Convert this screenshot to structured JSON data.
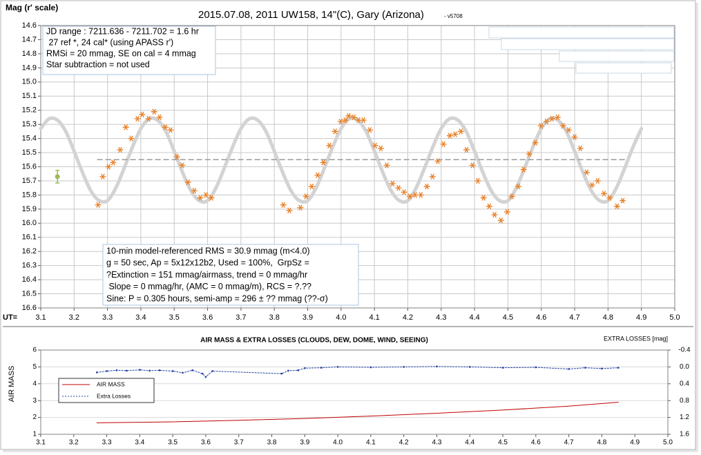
{
  "chart_data": [
    {
      "type": "scatter",
      "title": "2015.07.08, 2011 UW158, 14\"(C), Gary (Arizona)",
      "subtitle": "- v5708",
      "ylabel": "Mag (r' scale)",
      "xlabel": "UT=",
      "xlim": [
        3.1,
        5.0
      ],
      "xticks": [
        3.1,
        3.2,
        3.3,
        3.4,
        3.5,
        3.6,
        3.7,
        3.8,
        3.9,
        {
          "value": 4,
          "label": "4.0"
        },
        4.1,
        4.2,
        4.3,
        4.4,
        4.5,
        4.6,
        4.7,
        4.8,
        4.9,
        {
          "value": 5,
          "label": "5.0"
        }
      ],
      "ylim": [
        14.6,
        16.6
      ],
      "y_inverted": true,
      "yticks": [
        14.6,
        14.7,
        14.8,
        14.9,
        {
          "value": 15,
          "label": "15.0"
        },
        15.1,
        15.2,
        15.3,
        15.4,
        15.5,
        15.6,
        15.7,
        15.8,
        15.9,
        {
          "value": 16,
          "label": "16.0"
        },
        16.1,
        16.2,
        16.3,
        16.4,
        16.5,
        16.6
      ],
      "grid": true,
      "series": [
        {
          "color": "#d3d3d3",
          "x": [
            3.1,
            3.125,
            3.15,
            3.175,
            3.2,
            3.225,
            3.25,
            3.275,
            3.3,
            3.325,
            3.35,
            3.375,
            3.4,
            3.425,
            3.45,
            3.475,
            3.5,
            3.525,
            3.55,
            3.575,
            3.6,
            3.625,
            3.65,
            3.675,
            3.7,
            3.725,
            3.75,
            3.775,
            3.8,
            3.825,
            3.85,
            3.875,
            3.9,
            3.925,
            3.95,
            3.975,
            4.0,
            4.025,
            4.05,
            4.075,
            4.1,
            4.125,
            4.15,
            4.175,
            4.2,
            4.225,
            4.25,
            4.275,
            4.3,
            4.325,
            4.35,
            4.375,
            4.4,
            4.425,
            4.45,
            4.475,
            4.5,
            4.525,
            4.55,
            4.575,
            4.6,
            4.625,
            4.65,
            4.675,
            4.7,
            4.725,
            4.75,
            4.775,
            4.8,
            4.825,
            4.85,
            4.875,
            4.9
          ],
          "values": [
            15.33,
            15.26,
            15.27,
            15.35,
            15.49,
            15.64,
            15.77,
            15.84,
            15.84,
            15.75,
            15.61,
            15.46,
            15.33,
            15.26,
            15.27,
            15.35,
            15.49,
            15.64,
            15.77,
            15.84,
            15.84,
            15.75,
            15.61,
            15.46,
            15.33,
            15.26,
            15.27,
            15.35,
            15.49,
            15.64,
            15.77,
            15.84,
            15.84,
            15.75,
            15.61,
            15.46,
            15.33,
            15.26,
            15.27,
            15.35,
            15.49,
            15.64,
            15.77,
            15.84,
            15.84,
            15.75,
            15.61,
            15.46,
            15.33,
            15.26,
            15.27,
            15.35,
            15.49,
            15.64,
            15.77,
            15.84,
            15.84,
            15.75,
            15.61,
            15.46,
            15.33,
            15.26,
            15.27,
            15.35,
            15.49,
            15.64,
            15.77,
            15.84,
            15.84,
            15.75,
            15.61,
            15.46,
            15.33
          ]
        },
        {
          "color": "#e8822a",
          "marker": "asterisk",
          "x": [
            3.272,
            3.286,
            3.303,
            3.317,
            3.338,
            3.355,
            3.371,
            3.39,
            3.404,
            3.423,
            3.44,
            3.456,
            3.473,
            3.489,
            3.508,
            3.524,
            3.541,
            3.56,
            3.578,
            3.595,
            3.611,
            3.827,
            3.845,
            3.878,
            3.895,
            3.912,
            3.93,
            3.947,
            3.965,
            3.982,
            3.999,
            4.013,
            4.023,
            4.038,
            4.052,
            4.067,
            4.086,
            4.102,
            4.119,
            4.137,
            4.154,
            4.172,
            4.189,
            4.206,
            4.222,
            4.239,
            4.257,
            4.274,
            4.29,
            4.307,
            4.326,
            4.342,
            4.359,
            4.376,
            4.394,
            4.41,
            4.427,
            4.444,
            4.46,
            4.479,
            4.498,
            4.512,
            4.531,
            4.547,
            4.564,
            4.582,
            4.599,
            4.616,
            4.632,
            4.649,
            4.665,
            4.682,
            4.7,
            4.717,
            4.736,
            4.752,
            4.769,
            4.788,
            4.805,
            4.827,
            4.844
          ],
          "values": [
            15.87,
            15.67,
            15.6,
            15.57,
            15.48,
            15.32,
            15.4,
            15.26,
            15.23,
            15.26,
            15.21,
            15.25,
            15.32,
            15.34,
            15.53,
            15.59,
            15.71,
            15.77,
            15.82,
            15.8,
            15.82,
            15.87,
            15.91,
            15.89,
            15.81,
            15.74,
            15.66,
            15.57,
            15.45,
            15.35,
            15.28,
            15.27,
            15.24,
            15.25,
            15.27,
            15.27,
            15.34,
            15.45,
            15.47,
            15.59,
            15.72,
            15.75,
            15.78,
            15.81,
            15.8,
            15.8,
            15.74,
            15.67,
            15.56,
            15.44,
            15.38,
            15.37,
            15.35,
            15.48,
            15.59,
            15.7,
            15.82,
            15.88,
            15.94,
            15.98,
            15.92,
            15.81,
            15.74,
            15.62,
            15.51,
            15.43,
            15.31,
            15.28,
            15.26,
            15.25,
            15.31,
            15.34,
            15.39,
            15.47,
            15.64,
            15.73,
            15.7,
            15.79,
            15.82,
            15.88,
            15.84
          ]
        },
        {
          "color": "#9a9a9a",
          "dashed": true,
          "x": [
            3.27,
            4.85
          ],
          "values": [
            15.55,
            15.55
          ]
        },
        {
          "color": "#9bbb59",
          "marker": "circle",
          "x": [
            3.15
          ],
          "values": [
            15.67
          ],
          "errors": [
            0.045
          ]
        }
      ],
      "annotations": [
        [
          "JD range : 7211.636 - 7211.702 = 1.6 hr",
          " 27 ref *, 24 cal* (using APASS r')",
          "RMSi = 20 mmag, SE on cal = 4 mmag",
          "Star subtraction = not used"
        ],
        [
          "10-min model-referenced RMS = 30.9 mmag (m<4.0)",
          "g = 50 sec, Ap = 5x12x12b2, Used = 100%,  GrpSz =",
          "?Extinction = 151 mmag/airmass, trend = 0 mmag/hr",
          " Slope = 0 mmag/hr, (AMC = 0 mmag/m), RCS = ?.??",
          "Sine: P = 0.305 hours, semi-amp = 296 ± ?? mmag (??-σ)"
        ]
      ]
    },
    {
      "type": "line",
      "title": "AIR MASS & EXTRA LOSSES (CLOUDS, DEW, DOME, WIND, SEEING)",
      "ylabel": "AIR MASS",
      "y2label": "EXTRA LOSSES [mag]",
      "xlim": [
        3.1,
        5.0
      ],
      "xticks": [
        3.1,
        3.2,
        3.3,
        3.4,
        3.5,
        3.6,
        3.7,
        3.8,
        3.9,
        {
          "value": 4,
          "label": "4.0"
        },
        4.1,
        4.2,
        4.3,
        4.4,
        4.5,
        4.6,
        4.7,
        4.8,
        4.9,
        {
          "value": 5,
          "label": "5.0"
        }
      ],
      "ylim": [
        1,
        6
      ],
      "yticks": [
        1,
        2,
        3,
        4,
        5,
        6
      ],
      "y2lim": [
        -0.4,
        1.6
      ],
      "y2_inverted": true,
      "y2ticks": [
        -0.4,
        {
          "value": 0,
          "label": "0.0"
        },
        0.4,
        0.8,
        1.2,
        1.6
      ],
      "grid": "y",
      "legend": "left",
      "series": [
        {
          "name": "AIR MASS",
          "color": "#c00000",
          "x": [
            3.27,
            3.5,
            3.7,
            3.9,
            4.1,
            4.3,
            4.5,
            4.7,
            4.85
          ],
          "values": [
            1.68,
            1.74,
            1.83,
            1.94,
            2.08,
            2.25,
            2.44,
            2.67,
            2.9
          ]
        },
        {
          "name": "Extra Losses",
          "color": "#1f3fa0",
          "axis": "y2",
          "dotted": true,
          "marker": "dot",
          "x": [
            3.27,
            3.3,
            3.33,
            3.36,
            3.4,
            3.43,
            3.46,
            3.5,
            3.53,
            3.56,
            3.59,
            3.6,
            3.62,
            3.83,
            3.85,
            3.88,
            3.9,
            3.95,
            4.0,
            4.1,
            4.2,
            4.3,
            4.4,
            4.5,
            4.6,
            4.7,
            4.75,
            4.8,
            4.85
          ],
          "values": [
            0.13,
            0.1,
            0.08,
            0.09,
            0.07,
            0.09,
            0.08,
            0.1,
            0.14,
            0.08,
            0.16,
            0.24,
            0.1,
            0.16,
            0.09,
            0.08,
            0.03,
            0.02,
            0.0,
            0.01,
            0.0,
            -0.01,
            0.0,
            0.02,
            0.01,
            0.05,
            0.02,
            0.04,
            0.02
          ]
        }
      ]
    }
  ]
}
